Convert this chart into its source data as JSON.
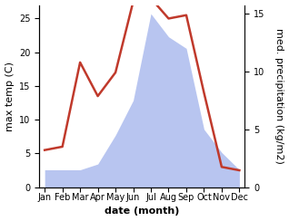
{
  "months": [
    "Jan",
    "Feb",
    "Mar",
    "Apr",
    "May",
    "Jun",
    "Jul",
    "Aug",
    "Sep",
    "Oct",
    "Nov",
    "Dec"
  ],
  "temperature": [
    5.5,
    6.0,
    18.5,
    13.5,
    17.0,
    27.5,
    28.0,
    25.0,
    25.5,
    14.0,
    3.0,
    2.5
  ],
  "precipitation": [
    1.5,
    1.5,
    1.5,
    2.0,
    4.5,
    7.5,
    15.0,
    13.0,
    12.0,
    5.0,
    3.0,
    1.5
  ],
  "temp_color": "#c0392b",
  "precip_color": "#b8c5f0",
  "ylabel_left": "max temp (C)",
  "ylabel_right": "med. precipitation (kg/m2)",
  "xlabel": "date (month)",
  "ylim_left": [
    0,
    27
  ],
  "ylim_right": [
    0,
    15.75
  ],
  "yticks_left": [
    0,
    5,
    10,
    15,
    20,
    25
  ],
  "yticks_right": [
    0,
    5,
    10,
    15
  ],
  "background_color": "#ffffff",
  "temp_linewidth": 1.8,
  "label_fontsize": 8,
  "tick_fontsize": 7
}
